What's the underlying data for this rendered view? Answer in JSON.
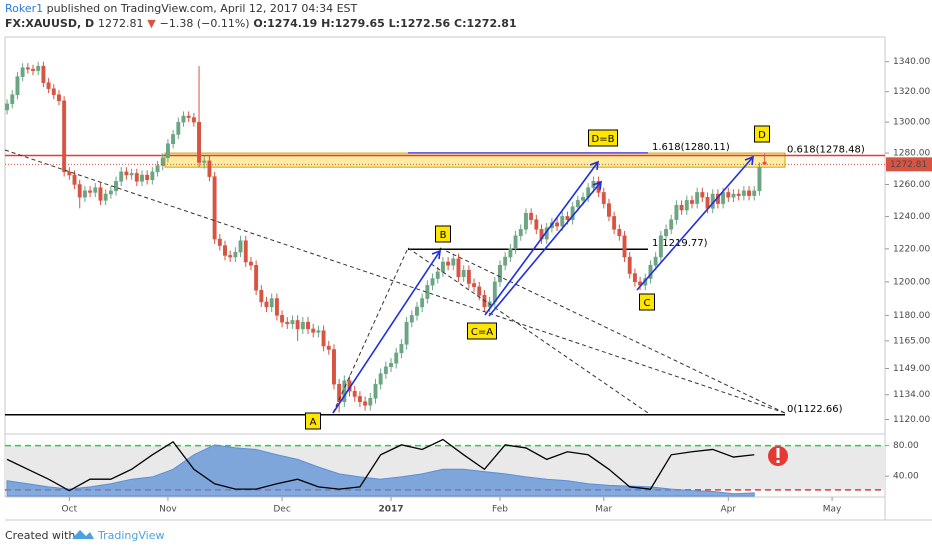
{
  "header": {
    "author": "Roker1",
    "published": "published on TradingView.com, April 12, 2017 04:34 EST",
    "symbol": "FX:XAUUSD, D",
    "price": "1272.81",
    "change": "−1.38 (−0.11%)",
    "open": "O:1274.19",
    "high": "H:1279.65",
    "low": "L:1272.56",
    "close": "C:1272.81"
  },
  "footer": {
    "created": "Created with",
    "brand": "TradingView"
  },
  "chart_data": [
    {
      "type": "candlestick",
      "log_scale": true,
      "up_color": "#6ba583",
      "down_color": "#d75442",
      "ylim": [
        1113,
        1356
      ],
      "xlim": [
        -0.4,
        169.2
      ],
      "yticks": [
        {
          "value": 1340,
          "label": "1340.00"
        },
        {
          "value": 1320,
          "label": "1320.00"
        },
        {
          "value": 1300,
          "label": "1300.00"
        },
        {
          "value": 1280,
          "label": "1280.00"
        },
        {
          "value": 1260,
          "label": "1260.00"
        },
        {
          "value": 1240,
          "label": "1240.00"
        },
        {
          "value": 1220,
          "label": "1220.00"
        },
        {
          "value": 1200,
          "label": "1200.00"
        },
        {
          "value": 1180,
          "label": "1180.00"
        },
        {
          "value": 1165,
          "label": "1165.00"
        },
        {
          "value": 1149,
          "label": "1149.00"
        },
        {
          "value": 1134,
          "label": "1134.00"
        },
        {
          "value": 1120,
          "label": "1120.00"
        }
      ],
      "xticks": [
        {
          "value": 12,
          "label": "Oct"
        },
        {
          "value": 31,
          "label": "Nov"
        },
        {
          "value": 53,
          "label": "Dec"
        },
        {
          "value": 74,
          "label": "2017"
        },
        {
          "value": 95,
          "label": "Feb"
        },
        {
          "value": 115,
          "label": "Mar"
        },
        {
          "value": 139,
          "label": "Apr"
        },
        {
          "value": 159,
          "label": "May"
        }
      ],
      "open": [
        1308,
        1312,
        1318,
        1330,
        1336,
        1335,
        1334,
        1337,
        1326,
        1322,
        1318,
        1314,
        1268,
        1266,
        1260,
        1252,
        1256,
        1255,
        1258,
        1250,
        1254,
        1256,
        1262,
        1268,
        1266,
        1267,
        1262,
        1266,
        1263,
        1268,
        1272,
        1277,
        1286,
        1292,
        1300,
        1304,
        1303,
        1300,
        1274,
        1275,
        1265,
        1226,
        1222,
        1216,
        1215,
        1218,
        1225,
        1212,
        1210,
        1195,
        1188,
        1185,
        1190,
        1180,
        1176,
        1175,
        1177,
        1172,
        1176,
        1172,
        1170,
        1171,
        1162,
        1160,
        1140,
        1130,
        1142,
        1136,
        1133,
        1130,
        1128,
        1132,
        1140,
        1146,
        1150,
        1152,
        1158,
        1163,
        1176,
        1180,
        1185,
        1190,
        1198,
        1202,
        1206,
        1212,
        1210,
        1214,
        1203,
        1207,
        1199,
        1197,
        1192,
        1185,
        1188,
        1200,
        1210,
        1215,
        1220,
        1228,
        1232,
        1242,
        1238,
        1232,
        1226,
        1233,
        1236,
        1234,
        1240,
        1238,
        1246,
        1250,
        1252,
        1258,
        1262,
        1255,
        1248,
        1240,
        1232,
        1228,
        1215,
        1205,
        1200,
        1198,
        1202,
        1210,
        1215,
        1228,
        1232,
        1238,
        1247,
        1244,
        1250,
        1248,
        1255,
        1252,
        1245,
        1254,
        1248,
        1255,
        1252,
        1254,
        1253,
        1256,
        1253,
        1256,
        1274.19
      ],
      "high": [
        1315,
        1321,
        1333,
        1339,
        1339,
        1338,
        1340,
        1340,
        1329,
        1325,
        1321,
        1317,
        1271,
        1269,
        1263,
        1259,
        1259,
        1261,
        1261,
        1257,
        1259,
        1265,
        1271,
        1271,
        1270,
        1270,
        1269,
        1269,
        1271,
        1275,
        1280,
        1289,
        1295,
        1303,
        1307,
        1307,
        1306,
        1337,
        1278,
        1278,
        1268,
        1229,
        1225,
        1219,
        1221,
        1228,
        1228,
        1215,
        1213,
        1198,
        1191,
        1193,
        1193,
        1183,
        1179,
        1180,
        1180,
        1179,
        1179,
        1175,
        1174,
        1174,
        1165,
        1163,
        1143,
        1145,
        1145,
        1139,
        1136,
        1133,
        1135,
        1143,
        1149,
        1153,
        1155,
        1161,
        1166,
        1179,
        1183,
        1188,
        1193,
        1201,
        1205,
        1209,
        1215,
        1215,
        1217,
        1217,
        1210,
        1210,
        1202,
        1200,
        1195,
        1191,
        1203,
        1213,
        1218,
        1223,
        1231,
        1235,
        1245,
        1245,
        1241,
        1235,
        1236,
        1239,
        1239,
        1243,
        1243,
        1249,
        1253,
        1255,
        1261,
        1265,
        1265,
        1258,
        1251,
        1243,
        1235,
        1231,
        1218,
        1208,
        1203,
        1205,
        1213,
        1218,
        1231,
        1235,
        1241,
        1250,
        1250,
        1253,
        1253,
        1258,
        1258,
        1255,
        1257,
        1257,
        1258,
        1258,
        1257,
        1257,
        1259,
        1259,
        1259,
        1274,
        1279.65
      ],
      "low": [
        1305,
        1309,
        1315,
        1327,
        1332,
        1331,
        1331,
        1323,
        1319,
        1315,
        1311,
        1265,
        1263,
        1257,
        1245,
        1249,
        1252,
        1252,
        1247,
        1247,
        1251,
        1253,
        1259,
        1263,
        1263,
        1259,
        1259,
        1260,
        1260,
        1265,
        1269,
        1274,
        1283,
        1289,
        1297,
        1300,
        1297,
        1271,
        1270,
        1262,
        1223,
        1219,
        1213,
        1212,
        1212,
        1215,
        1209,
        1207,
        1192,
        1185,
        1182,
        1182,
        1177,
        1173,
        1172,
        1172,
        1165,
        1169,
        1169,
        1167,
        1167,
        1159,
        1157,
        1137,
        1124,
        1127,
        1133,
        1130,
        1127,
        1125,
        1125,
        1129,
        1137,
        1143,
        1147,
        1149,
        1155,
        1160,
        1173,
        1177,
        1182,
        1187,
        1195,
        1199,
        1203,
        1207,
        1207,
        1200,
        1200,
        1196,
        1194,
        1189,
        1182,
        1182,
        1185,
        1197,
        1207,
        1212,
        1217,
        1225,
        1229,
        1235,
        1229,
        1223,
        1223,
        1230,
        1231,
        1231,
        1235,
        1235,
        1243,
        1247,
        1249,
        1255,
        1252,
        1245,
        1237,
        1229,
        1225,
        1212,
        1202,
        1197,
        1195,
        1195,
        1199,
        1207,
        1212,
        1225,
        1229,
        1235,
        1241,
        1241,
        1245,
        1245,
        1249,
        1242,
        1242,
        1245,
        1245,
        1249,
        1249,
        1250,
        1250,
        1250,
        1250,
        1253,
        1272.56
      ],
      "close": [
        1312,
        1318,
        1330,
        1336,
        1335,
        1334,
        1337,
        1326,
        1322,
        1318,
        1314,
        1268,
        1266,
        1260,
        1252,
        1256,
        1255,
        1258,
        1250,
        1254,
        1256,
        1262,
        1268,
        1266,
        1267,
        1262,
        1266,
        1263,
        1268,
        1272,
        1277,
        1286,
        1292,
        1300,
        1304,
        1303,
        1300,
        1274,
        1275,
        1265,
        1226,
        1222,
        1216,
        1215,
        1218,
        1225,
        1212,
        1210,
        1195,
        1188,
        1185,
        1190,
        1180,
        1176,
        1175,
        1177,
        1172,
        1176,
        1172,
        1170,
        1171,
        1162,
        1160,
        1140,
        1130,
        1142,
        1136,
        1133,
        1130,
        1128,
        1132,
        1140,
        1146,
        1150,
        1152,
        1158,
        1163,
        1176,
        1180,
        1185,
        1190,
        1198,
        1202,
        1206,
        1212,
        1210,
        1214,
        1203,
        1207,
        1199,
        1197,
        1192,
        1185,
        1188,
        1200,
        1210,
        1215,
        1220,
        1228,
        1232,
        1242,
        1238,
        1232,
        1226,
        1233,
        1236,
        1234,
        1240,
        1238,
        1246,
        1250,
        1252,
        1258,
        1262,
        1255,
        1248,
        1240,
        1232,
        1228,
        1215,
        1205,
        1200,
        1198,
        1202,
        1210,
        1215,
        1228,
        1232,
        1238,
        1247,
        1244,
        1250,
        1248,
        1255,
        1252,
        1245,
        1254,
        1248,
        1255,
        1252,
        1254,
        1253,
        1256,
        1253,
        1256,
        1271,
        1272.81
      ],
      "last_price": {
        "value": 1272.81,
        "label": "1272.81",
        "color": "#d75442"
      },
      "zone": {
        "range": [
          1271,
          1280
        ],
        "color": "#ffe680"
      },
      "fib_levels": [
        {
          "label": "1.618(1280.11)",
          "value": 1280.11,
          "color": "#5b4bd1"
        },
        {
          "label": "0.618(1278.48)",
          "value": 1278.48,
          "color": "#e53935"
        },
        {
          "label": "1(1219.77)",
          "value": 1219.77,
          "color": "#000000"
        },
        {
          "label": "0(1122.66)",
          "value": 1122.66,
          "color": "#000000"
        }
      ],
      "annotations": [
        "A",
        "B",
        "C=A",
        "D=B",
        "C",
        "D"
      ]
    },
    {
      "type": "oscillator",
      "ylim": [
        14,
        90
      ],
      "xlim": [
        -0.4,
        169.2
      ],
      "yticks": [
        {
          "value": 80,
          "label": "80.00"
        },
        {
          "value": 40,
          "label": "40.00"
        }
      ],
      "bands": [
        {
          "value": 80,
          "color": "#2ecc40"
        },
        {
          "value": 22,
          "color": "#e53935"
        }
      ],
      "x": [
        0,
        4,
        8,
        12,
        16,
        20,
        24,
        28,
        32,
        36,
        40,
        44,
        48,
        52,
        56,
        60,
        64,
        68,
        72,
        76,
        80,
        84,
        88,
        92,
        96,
        100,
        104,
        108,
        112,
        116,
        120,
        124,
        128,
        132,
        136,
        140,
        144
      ],
      "series": [
        {
          "name": "area",
          "color": "#5b8fd6",
          "values": [
            34,
            30,
            26,
            23,
            26,
            30,
            36,
            39,
            49,
            68,
            81,
            77,
            75,
            68,
            62,
            52,
            43,
            39,
            36,
            39,
            43,
            49,
            49,
            46,
            43,
            39,
            36,
            34,
            30,
            28,
            27,
            26,
            23,
            21,
            20,
            17,
            18
          ]
        },
        {
          "name": "line",
          "color": "#000000",
          "values": [
            62,
            49,
            36,
            21,
            36,
            36,
            49,
            68,
            85,
            49,
            30,
            23,
            23,
            30,
            36,
            26,
            23,
            26,
            68,
            81,
            75,
            88,
            68,
            49,
            81,
            77,
            62,
            72,
            68,
            49,
            26,
            23,
            68,
            72,
            75,
            65,
            68
          ]
        }
      ]
    }
  ]
}
